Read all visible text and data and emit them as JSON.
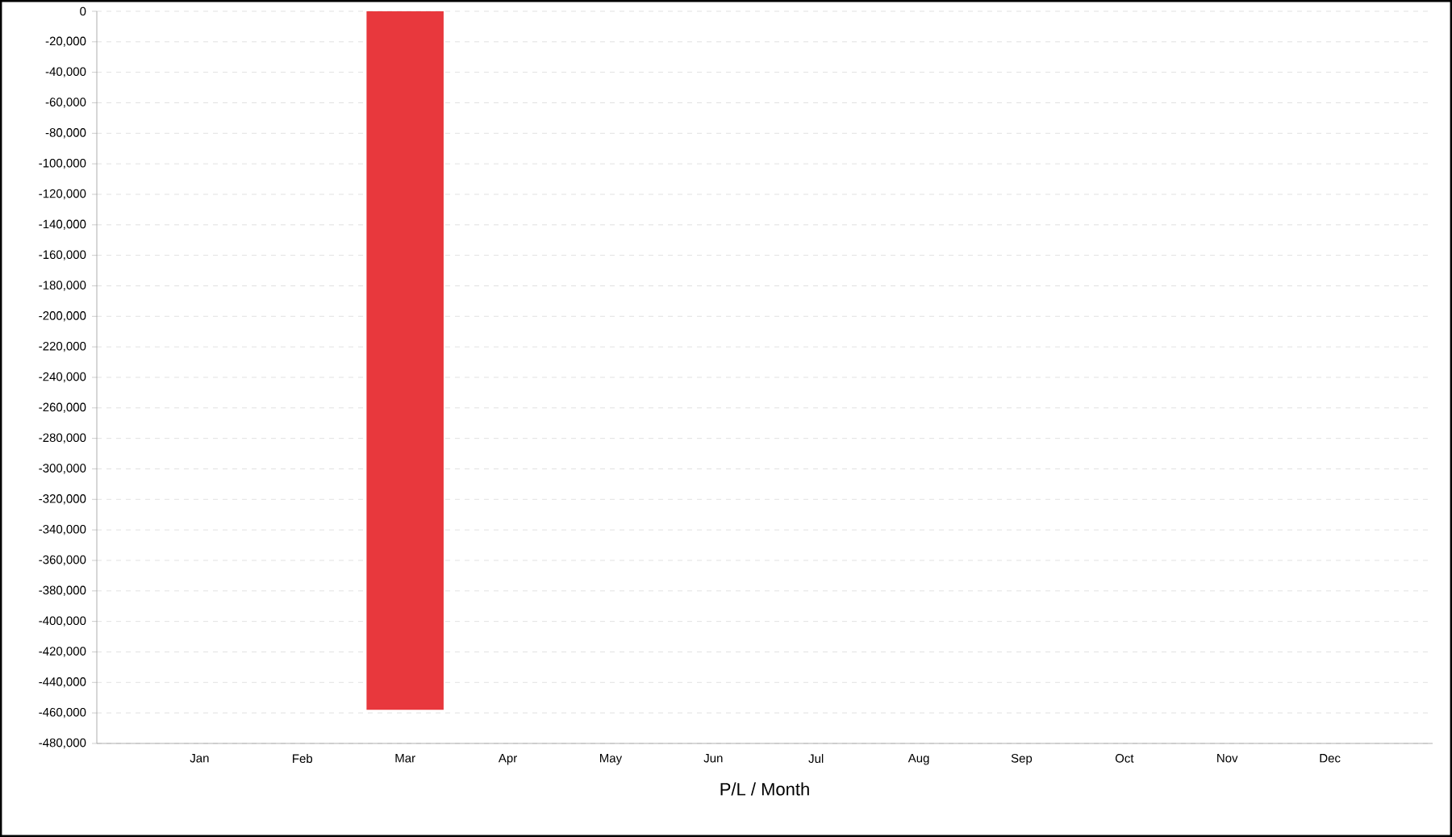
{
  "chart_data": {
    "type": "bar",
    "xlabel": "P/L / Month",
    "categories": [
      "Jan",
      "Feb",
      "Mar",
      "Apr",
      "May",
      "Jun",
      "Jul",
      "Aug",
      "Sep",
      "Oct",
      "Nov",
      "Dec"
    ],
    "values": [
      0,
      0,
      -458000,
      0,
      0,
      0,
      0,
      0,
      0,
      0,
      0,
      0
    ],
    "color": "#e8383d",
    "ylim": [
      -480000,
      0
    ],
    "yticks": [
      {
        "value": 0,
        "label": "0"
      },
      {
        "value": -20000,
        "label": "-20,000"
      },
      {
        "value": -40000,
        "label": "-40,000"
      },
      {
        "value": -60000,
        "label": "-60,000"
      },
      {
        "value": -80000,
        "label": "-80,000"
      },
      {
        "value": -100000,
        "label": "-100,000"
      },
      {
        "value": -120000,
        "label": "-120,000"
      },
      {
        "value": -140000,
        "label": "-140,000"
      },
      {
        "value": -160000,
        "label": "-160,000"
      },
      {
        "value": -180000,
        "label": "-180,000"
      },
      {
        "value": -200000,
        "label": "-200,000"
      },
      {
        "value": -220000,
        "label": "-220,000"
      },
      {
        "value": -240000,
        "label": "-240,000"
      },
      {
        "value": -260000,
        "label": "-260,000"
      },
      {
        "value": -280000,
        "label": "-280,000"
      },
      {
        "value": -300000,
        "label": "-300,000"
      },
      {
        "value": -320000,
        "label": "-320,000"
      },
      {
        "value": -340000,
        "label": "-340,000"
      },
      {
        "value": -360000,
        "label": "-360,000"
      },
      {
        "value": -380000,
        "label": "-380,000"
      },
      {
        "value": -400000,
        "label": "-400,000"
      },
      {
        "value": -420000,
        "label": "-420,000"
      },
      {
        "value": -440000,
        "label": "-440,000"
      },
      {
        "value": -460000,
        "label": "-460,000"
      },
      {
        "value": -480000,
        "label": "-480,000"
      }
    ],
    "grid": "y"
  }
}
